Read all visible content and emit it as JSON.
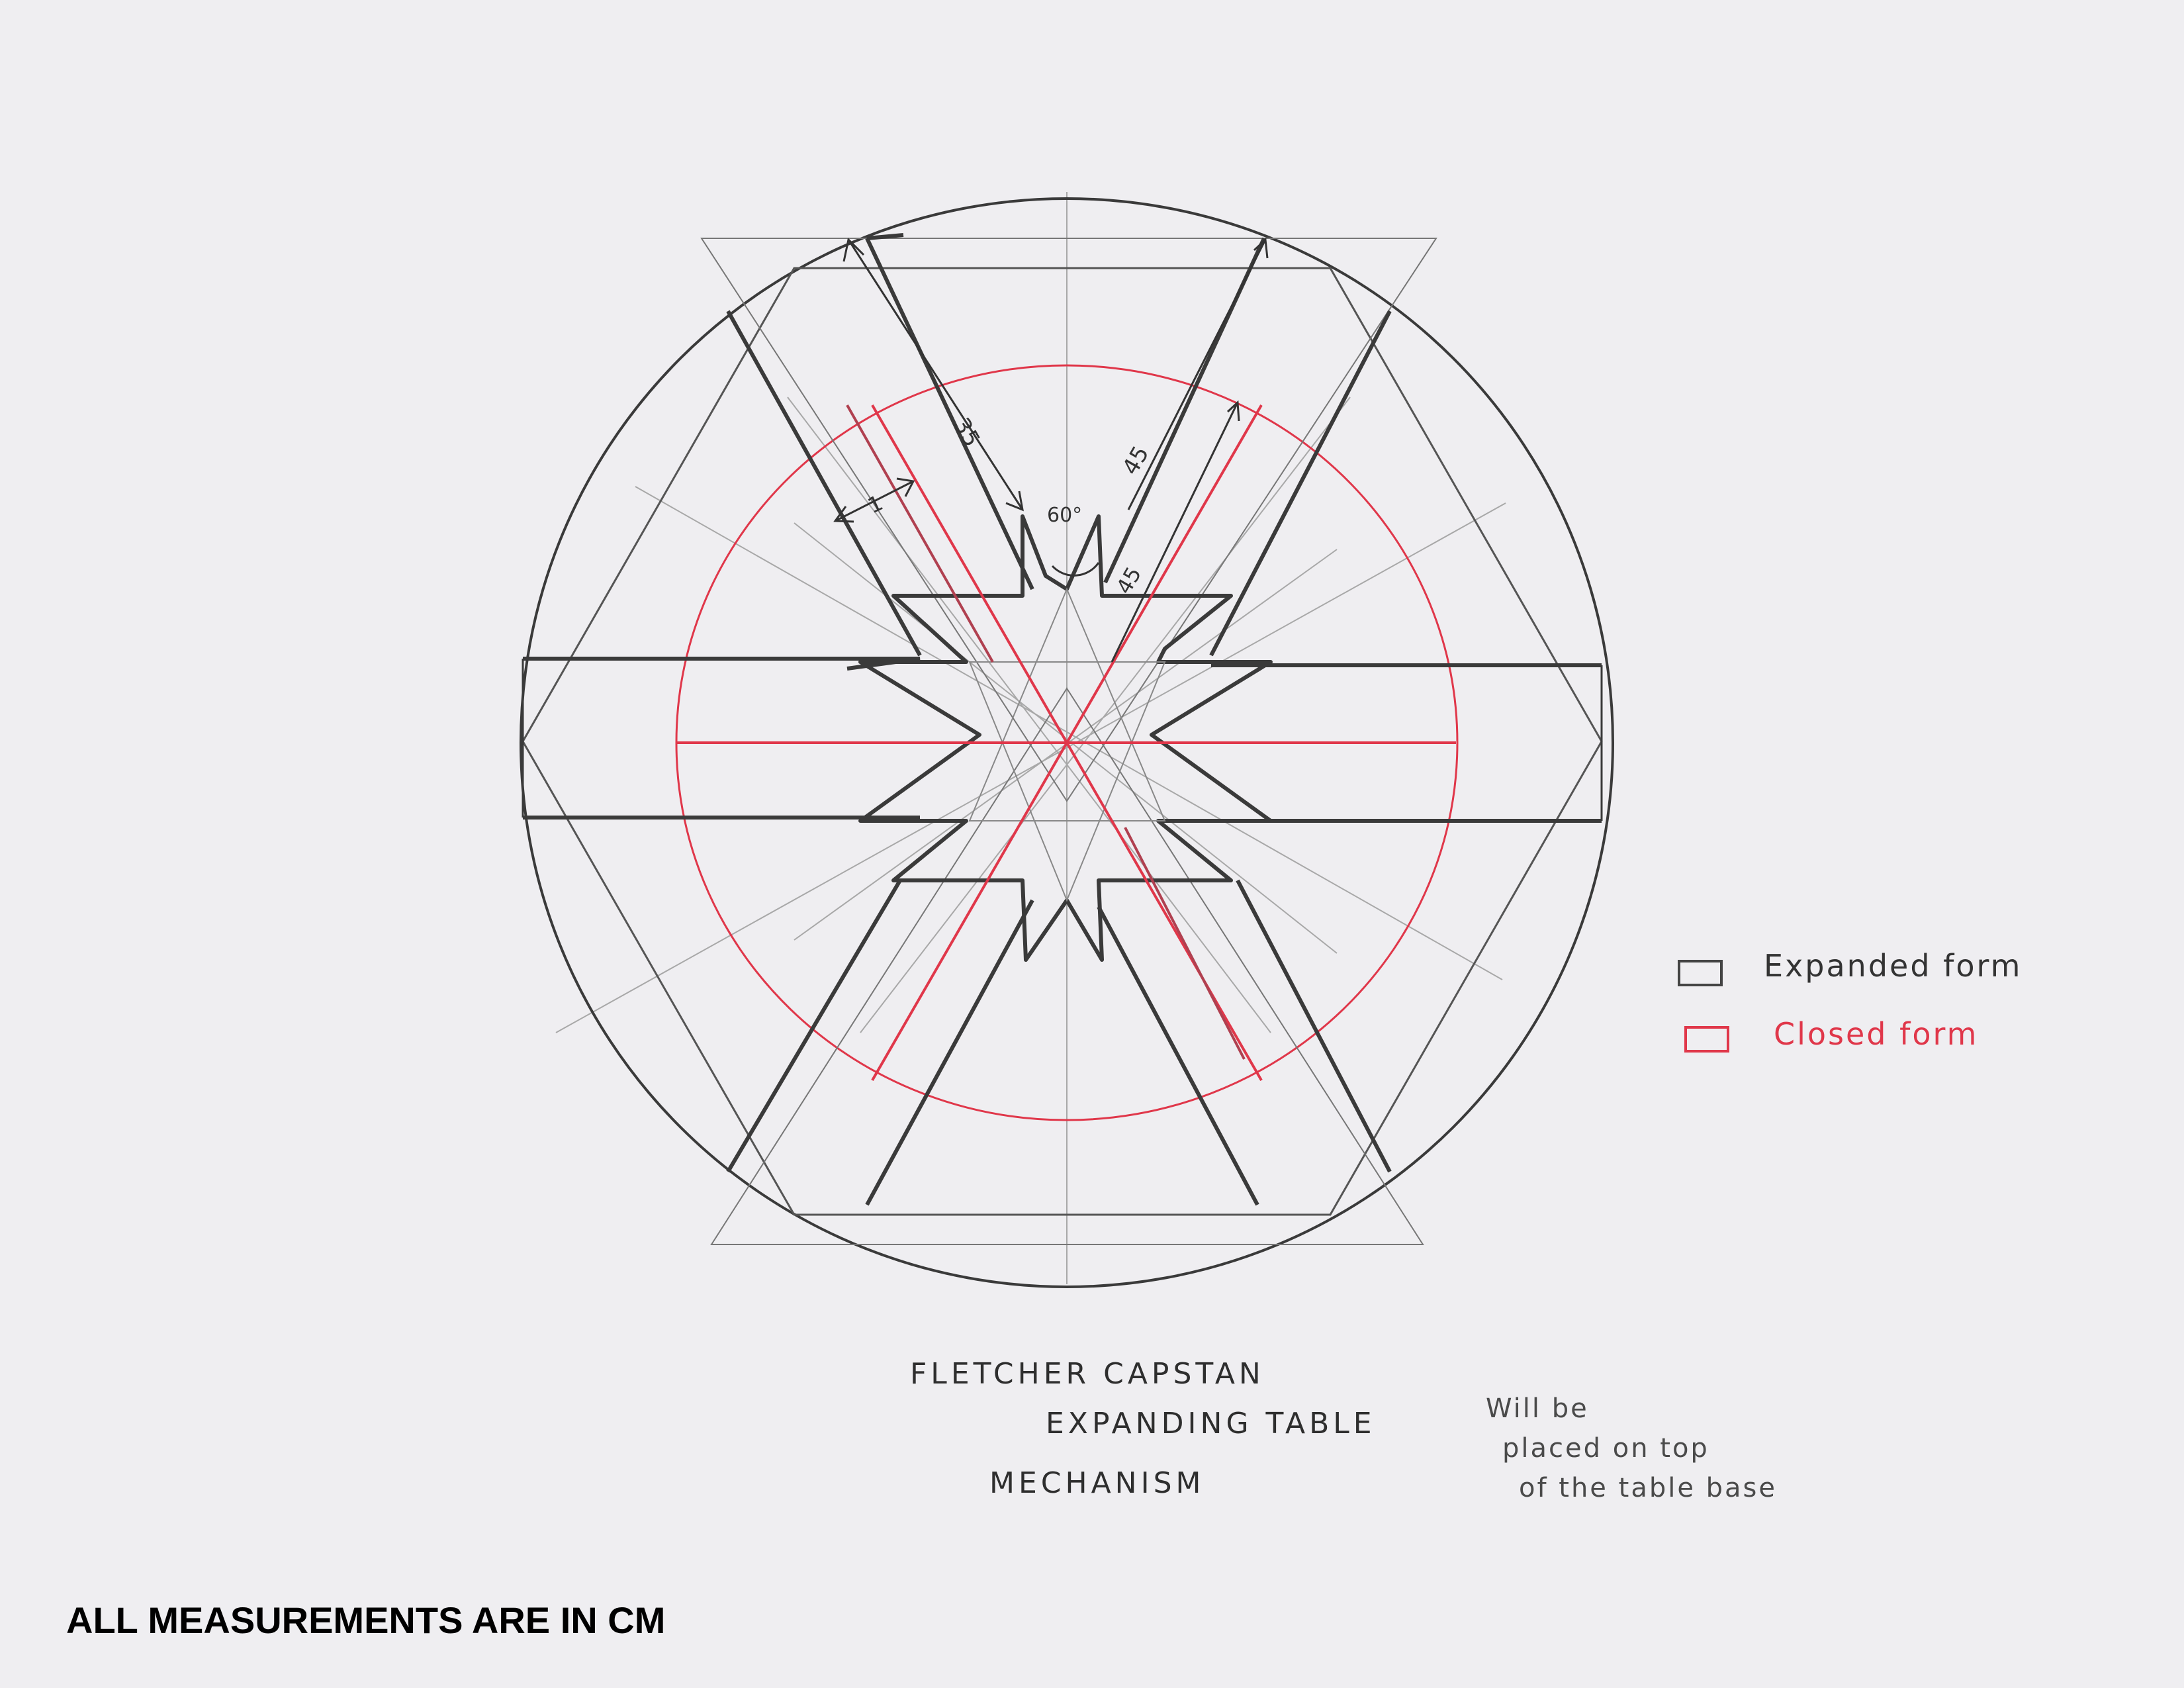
{
  "dimensions": {
    "bar_length_top": "35",
    "bar_length_right": "45",
    "bar_length_inner": "45",
    "bar_width": "1",
    "angle": "60°"
  },
  "legend": {
    "items": [
      {
        "label": "Expanded form",
        "color": "#444444"
      },
      {
        "label": "Closed form",
        "color": "#e0374a"
      }
    ]
  },
  "title": {
    "lines": [
      "FLETCHER CAPSTAN",
      "EXPANDING TABLE",
      "MECHANISM"
    ]
  },
  "note": {
    "lines": [
      "Will be",
      "placed on top",
      "of the table base"
    ]
  },
  "footer": "ALL MEASUREMENTS ARE IN CM",
  "colors": {
    "paper": "#efeef1",
    "pencil_dark": "#3a3a3a",
    "pencil_light": "#9a9a9a",
    "red": "#e0374a"
  }
}
